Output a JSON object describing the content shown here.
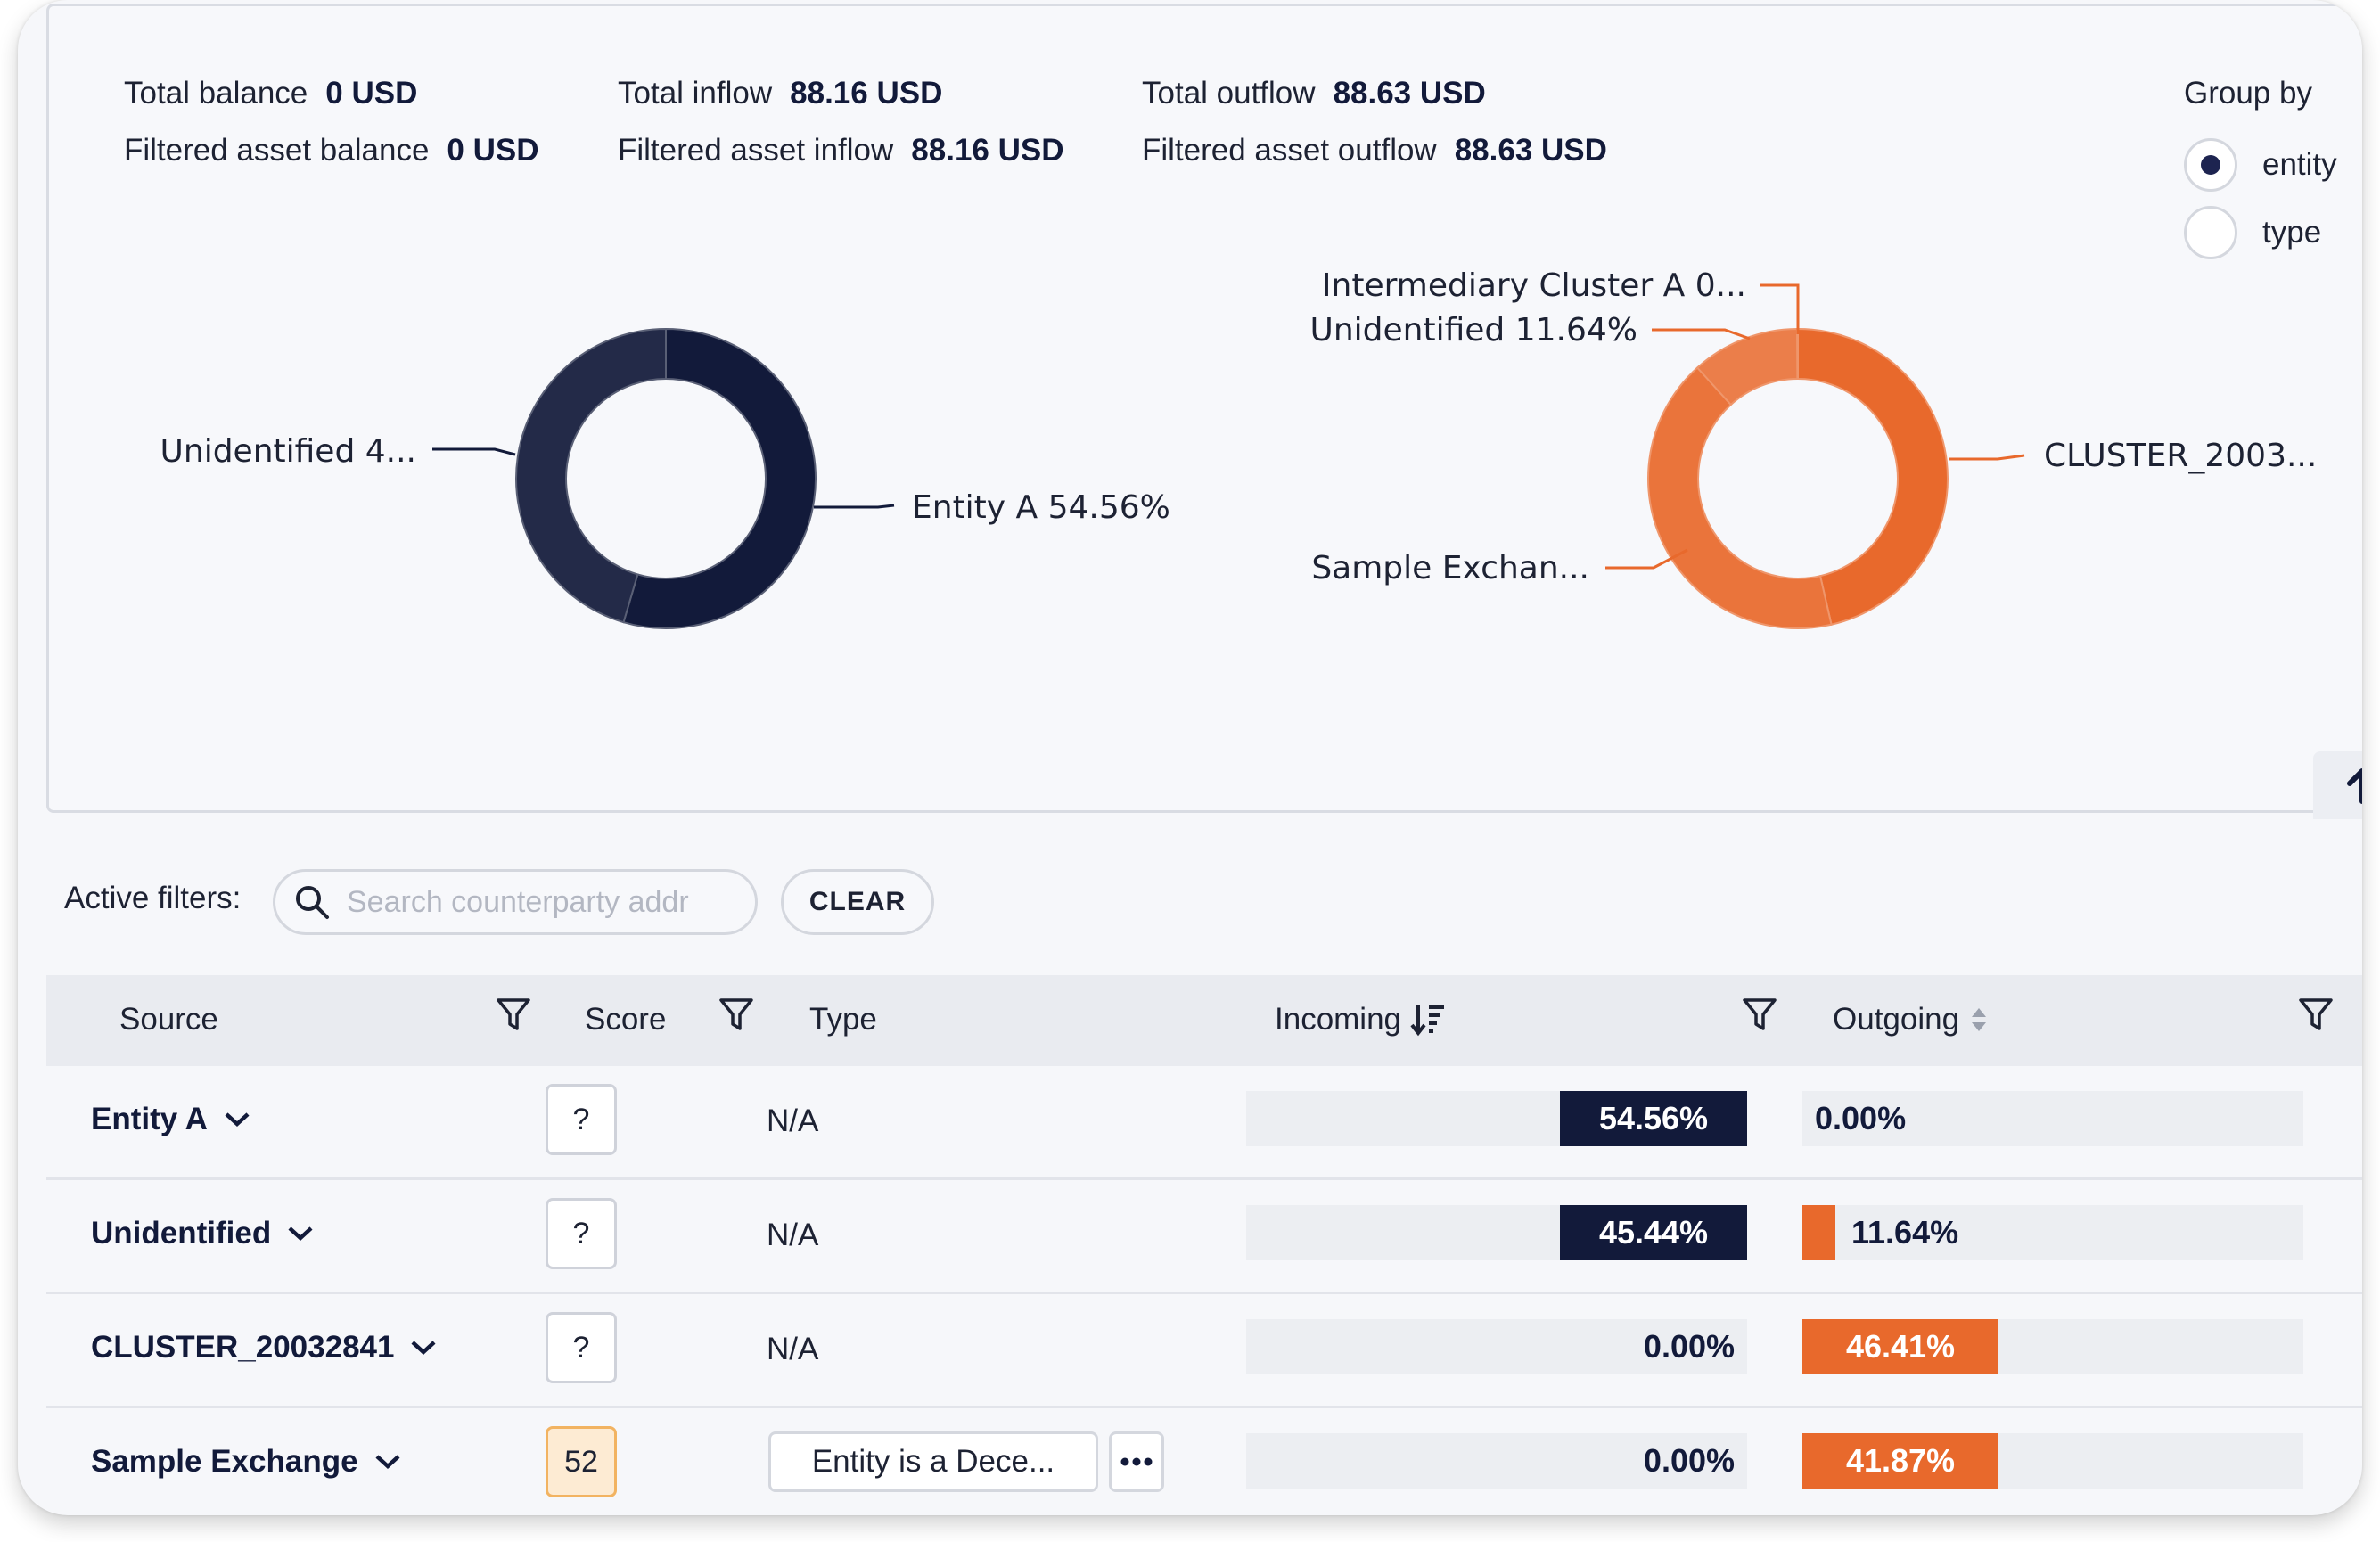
{
  "summary": {
    "total_balance_label": "Total balance",
    "total_balance_value": "0 USD",
    "filtered_balance_label": "Filtered asset balance",
    "filtered_balance_value": "0 USD",
    "total_inflow_label": "Total inflow",
    "total_inflow_value": "88.16 USD",
    "filtered_inflow_label": "Filtered asset inflow",
    "filtered_inflow_value": "88.16 USD",
    "total_outflow_label": "Total outflow",
    "total_outflow_value": "88.63 USD",
    "filtered_outflow_label": "Filtered asset outflow",
    "filtered_outflow_value": "88.63 USD"
  },
  "group_by": {
    "title": "Group by",
    "options": [
      {
        "label": "entity",
        "selected": true
      },
      {
        "label": "type",
        "selected": false
      }
    ]
  },
  "chart_data": [
    {
      "type": "pie",
      "donut": true,
      "color": "#121a3a",
      "slices": [
        {
          "label": "Entity A 54.56%",
          "value": 54.56
        },
        {
          "label": "Unidentified 4...",
          "value": 45.44
        }
      ]
    },
    {
      "type": "pie",
      "donut": true,
      "color": "#e8692c",
      "slices": [
        {
          "label": "CLUSTER_2003...",
          "value": 46.41
        },
        {
          "label": "Sample Exchan...",
          "value": 41.87
        },
        {
          "label": "Unidentified 11.64%",
          "value": 11.64
        },
        {
          "label": "Intermediary Cluster A 0...",
          "value": 0.08
        }
      ]
    }
  ],
  "filters": {
    "label": "Active filters:",
    "search_placeholder": "Search counterparty addr",
    "search_value": "",
    "clear_label": "CLEAR"
  },
  "table": {
    "columns": {
      "source": "Source",
      "score": "Score",
      "type": "Type",
      "incoming": "Incoming",
      "outgoing": "Outgoing"
    },
    "rows": [
      {
        "source": "Entity A",
        "score": "?",
        "type": "N/A",
        "incoming": 54.56,
        "incoming_label": "54.56%",
        "outgoing": 0.0,
        "outgoing_label": "0.00%"
      },
      {
        "source": "Unidentified",
        "score": "?",
        "type": "N/A",
        "incoming": 45.44,
        "incoming_label": "45.44%",
        "outgoing": 11.64,
        "outgoing_label": "11.64%"
      },
      {
        "source": "CLUSTER_20032841",
        "score": "?",
        "type": "N/A",
        "incoming": 0.0,
        "incoming_label": "0.00%",
        "outgoing": 46.41,
        "outgoing_label": "46.41%"
      },
      {
        "source": "Sample Exchange",
        "score": "52",
        "type": "Entity is a Dece...",
        "incoming": 0.0,
        "incoming_label": "0.00%",
        "outgoing": 41.87,
        "outgoing_label": "41.87%"
      }
    ]
  }
}
